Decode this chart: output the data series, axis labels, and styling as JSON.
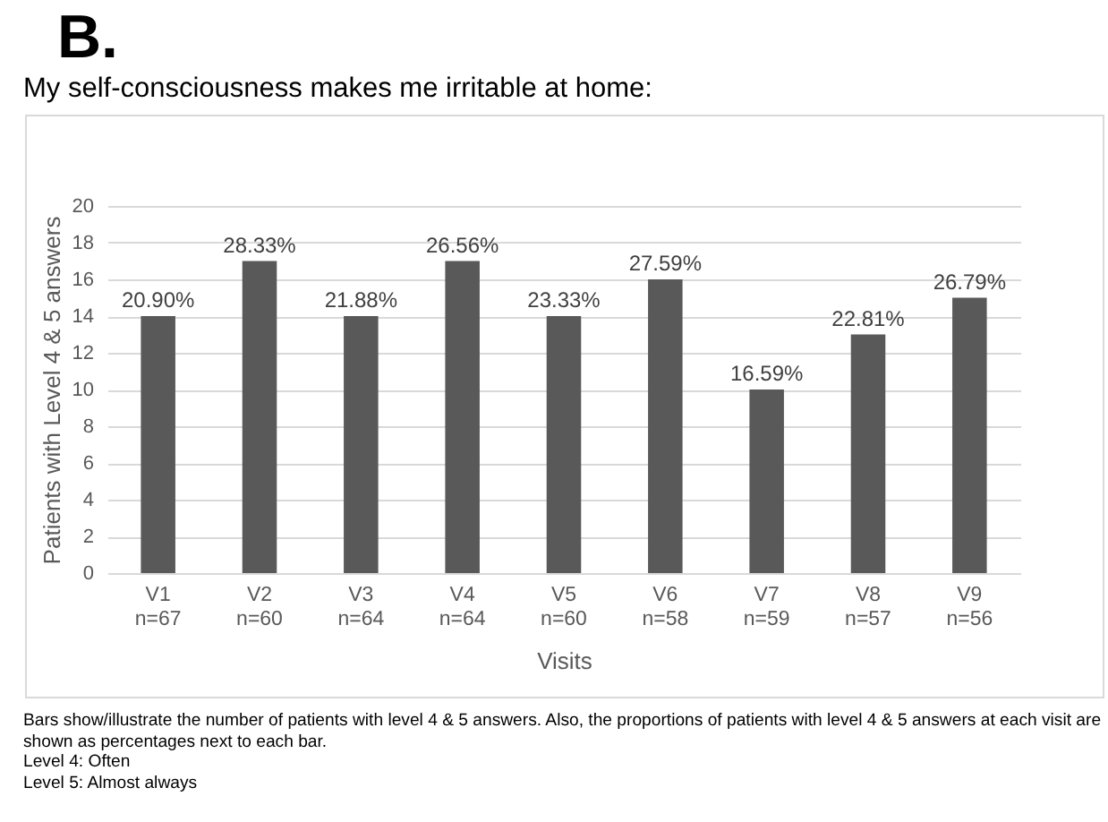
{
  "chart_data": {
    "type": "bar",
    "title": "B.",
    "subtitle": "My self-consciousness makes me irritable at home:",
    "xlabel": "Visits",
    "ylabel": "Patients with Level 4 & 5 answers",
    "categories": [
      "V1\nn=67",
      "V2\nn=60",
      "V3\nn=64",
      "V4\nn=64",
      "V5\nn=60",
      "V6\nn=58",
      "V7\nn=59",
      "V8\nn=57",
      "V9\nn=56"
    ],
    "values": [
      14,
      17,
      14,
      17,
      14,
      16,
      10,
      13,
      15
    ],
    "color": "#595959",
    "ylim": [
      0,
      20
    ],
    "yticks": [
      0,
      2,
      4,
      6,
      8,
      10,
      12,
      14,
      16,
      18,
      20
    ],
    "grid": "y",
    "annotations": [
      {
        "text": "20.90%",
        "x": "V1\nn=67",
        "y": 14
      },
      {
        "text": "28.33%",
        "x": "V2\nn=60",
        "y": 17
      },
      {
        "text": "21.88%",
        "x": "V3\nn=64",
        "y": 14
      },
      {
        "text": "26.56%",
        "x": "V4\nn=64",
        "y": 17
      },
      {
        "text": "23.33%",
        "x": "V5\nn=60",
        "y": 14
      },
      {
        "text": "27.59%",
        "x": "V6\nn=58",
        "y": 16
      },
      {
        "text": "16.59%",
        "x": "V7\nn=59",
        "y": 10
      },
      {
        "text": "22.81%",
        "x": "V8\nn=57",
        "y": 13
      },
      {
        "text": "26.79%",
        "x": "V9\nn=56",
        "y": 15
      },
      "Bars show/illustrate the number of patients with level 4 & 5 answers. Also, the proportions of patients with level 4 & 5 answers at each visit are shown as percentages next to each bar.",
      "Level 4: Often",
      "Level 5: Almost always"
    ]
  }
}
